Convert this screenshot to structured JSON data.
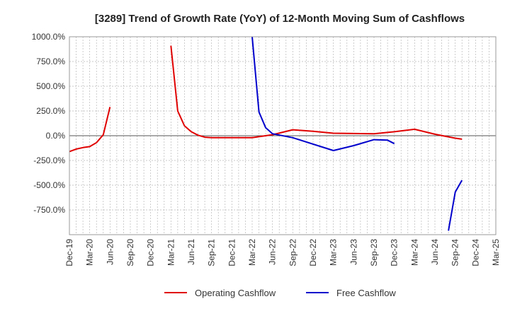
{
  "chart_data": {
    "type": "line",
    "title": "[3289]  Trend of Growth Rate (YoY) of 12-Month Moving Sum of Cashflows",
    "xlabel": "",
    "ylabel": "",
    "ylim": [
      -1000,
      1000
    ],
    "y_ticks": [
      1000,
      750,
      500,
      250,
      0,
      -250,
      -500,
      -750
    ],
    "y_tick_labels": [
      "1000.0%",
      "750.0%",
      "500.0%",
      "250.0%",
      "0.0%",
      "-250.0%",
      "-500.0%",
      "-750.0%"
    ],
    "x_tick_labels": [
      "Dec-19",
      "Mar-20",
      "Jun-20",
      "Sep-20",
      "Dec-20",
      "Mar-21",
      "Jun-21",
      "Sep-21",
      "Dec-21",
      "Mar-22",
      "Jun-22",
      "Sep-22",
      "Dec-22",
      "Mar-23",
      "Jun-23",
      "Sep-23",
      "Dec-23",
      "Mar-24",
      "Jun-24",
      "Sep-24",
      "Dec-24",
      "Mar-25"
    ],
    "grid": true,
    "legend_position": "bottom-center",
    "series": [
      {
        "name": "Operating Cashflow",
        "color": "#e00000",
        "points": [
          [
            "2019-12",
            -160
          ],
          [
            "2020-01",
            -135
          ],
          [
            "2020-02",
            -120
          ],
          [
            "2020-03",
            -110
          ],
          [
            "2020-04",
            -70
          ],
          [
            "2020-05",
            10
          ],
          [
            "2020-06",
            290
          ],
          null,
          [
            "2021-03",
            910
          ],
          [
            "2021-04",
            250
          ],
          [
            "2021-05",
            100
          ],
          [
            "2021-06",
            40
          ],
          [
            "2021-07",
            5
          ],
          [
            "2021-08",
            -15
          ],
          [
            "2021-09",
            -20
          ],
          [
            "2021-12",
            -20
          ],
          [
            "2022-03",
            -20
          ],
          [
            "2022-06",
            10
          ],
          [
            "2022-09",
            60
          ],
          [
            "2022-12",
            45
          ],
          [
            "2023-03",
            25
          ],
          [
            "2023-06",
            22
          ],
          [
            "2023-09",
            20
          ],
          [
            "2023-12",
            40
          ],
          [
            "2024-03",
            65
          ],
          [
            "2024-06",
            15
          ],
          [
            "2024-09",
            -25
          ],
          [
            "2024-10",
            -35
          ]
        ]
      },
      {
        "name": "Free Cashflow",
        "color": "#0000cc",
        "points": [
          [
            "2022-03",
            1000
          ],
          [
            "2022-04",
            240
          ],
          [
            "2022-05",
            80
          ],
          [
            "2022-06",
            20
          ],
          [
            "2022-09",
            -20
          ],
          [
            "2023-03",
            -150
          ],
          [
            "2023-06",
            -100
          ],
          [
            "2023-09",
            -40
          ],
          [
            "2023-11",
            -45
          ],
          [
            "2023-12",
            -80
          ],
          null,
          [
            "2024-08",
            -960
          ],
          [
            "2024-09",
            -570
          ],
          [
            "2024-10",
            -450
          ]
        ]
      }
    ]
  }
}
